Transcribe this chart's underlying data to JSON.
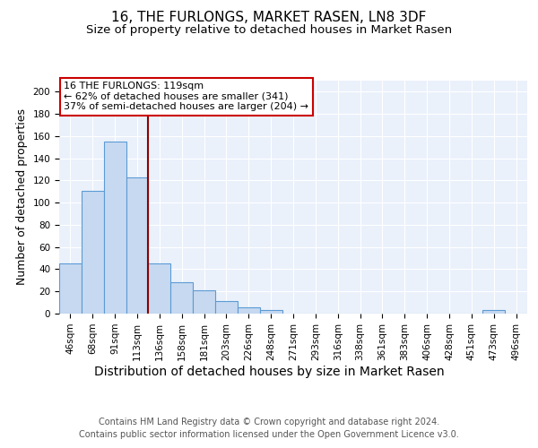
{
  "title": "16, THE FURLONGS, MARKET RASEN, LN8 3DF",
  "subtitle": "Size of property relative to detached houses in Market Rasen",
  "xlabel": "Distribution of detached houses by size in Market Rasen",
  "ylabel": "Number of detached properties",
  "bar_labels": [
    "46sqm",
    "68sqm",
    "91sqm",
    "113sqm",
    "136sqm",
    "158sqm",
    "181sqm",
    "203sqm",
    "226sqm",
    "248sqm",
    "271sqm",
    "293sqm",
    "316sqm",
    "338sqm",
    "361sqm",
    "383sqm",
    "406sqm",
    "428sqm",
    "451sqm",
    "473sqm",
    "496sqm"
  ],
  "bar_values": [
    45,
    111,
    155,
    123,
    45,
    28,
    21,
    11,
    6,
    3,
    0,
    0,
    0,
    0,
    0,
    0,
    0,
    0,
    0,
    3,
    0
  ],
  "bar_color": "#c7d9f0",
  "bar_edge_color": "#5b9bd5",
  "vline_x": 3.5,
  "vline_color": "#8b0000",
  "annotation_text": "16 THE FURLONGS: 119sqm\n← 62% of detached houses are smaller (341)\n37% of semi-detached houses are larger (204) →",
  "annotation_box_color": "white",
  "annotation_box_edge": "#cc0000",
  "ylim": [
    0,
    210
  ],
  "yticks": [
    0,
    20,
    40,
    60,
    80,
    100,
    120,
    140,
    160,
    180,
    200
  ],
  "footnote": "Contains HM Land Registry data © Crown copyright and database right 2024.\nContains public sector information licensed under the Open Government Licence v3.0.",
  "background_color": "#eaf1fb",
  "grid_color": "#ffffff",
  "title_fontsize": 11,
  "subtitle_fontsize": 9.5,
  "xlabel_fontsize": 10,
  "ylabel_fontsize": 9,
  "tick_fontsize": 7.5,
  "footnote_fontsize": 7,
  "annotation_fontsize": 8
}
